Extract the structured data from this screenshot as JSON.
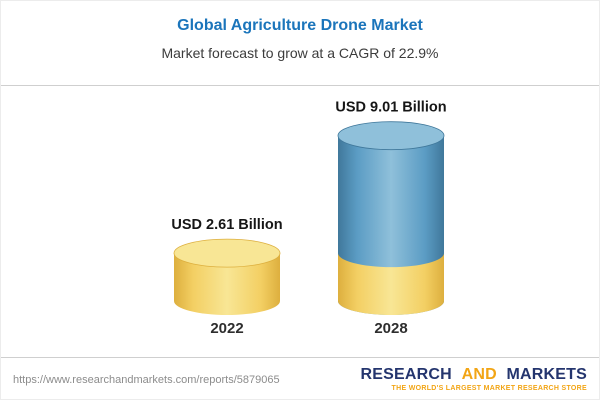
{
  "header": {
    "title": "Global Agriculture Drone Market",
    "subtitle": "Market forecast to grow at a CAGR of 22.9%"
  },
  "chart_data": {
    "type": "bar",
    "subtype": "3d-cylinder-columns",
    "categories": [
      "2022",
      "2028"
    ],
    "values": [
      2.61,
      9.01
    ],
    "value_labels": [
      "USD 2.61 Billion",
      "USD 9.01 Billion"
    ],
    "unit": "USD Billion",
    "title": "Global Agriculture Drone Market",
    "subtitle": "Market forecast to grow at a CAGR of 22.9%",
    "cagr_percent": 22.9,
    "xlabel": "",
    "ylabel": "",
    "ylim": [
      0,
      10
    ],
    "grid": false,
    "legend": "none",
    "notes": "2028 cylinder has a yellow base segment equal to the 2022 value with blue growth above it"
  },
  "footer": {
    "url": "https://www.researchandmarkets.com/reports/5879065",
    "logo": {
      "word1": "RESEARCH",
      "word2": "AND",
      "word3": "MARKETS",
      "tagline": "THE WORLD'S LARGEST MARKET RESEARCH STORE"
    }
  },
  "colors": {
    "title_blue": "#1b75bb",
    "subtitle_text": "#3c3c3c",
    "value_label_text": "#161616",
    "year_label_text": "#2e2e2e",
    "bar_yellow": "#f3cf63",
    "bar_yellow_light": "#f8e695",
    "bar_yellow_dark": "#ddaf3e",
    "bar_blue": "#5b9cc4",
    "bar_blue_light": "#8fc0da",
    "bar_blue_dark": "#40789b",
    "divider_gray": "#cfcfcf",
    "url_text": "#8c8c8c",
    "logo_navy": "#24356e",
    "logo_gold": "#f2a515"
  }
}
